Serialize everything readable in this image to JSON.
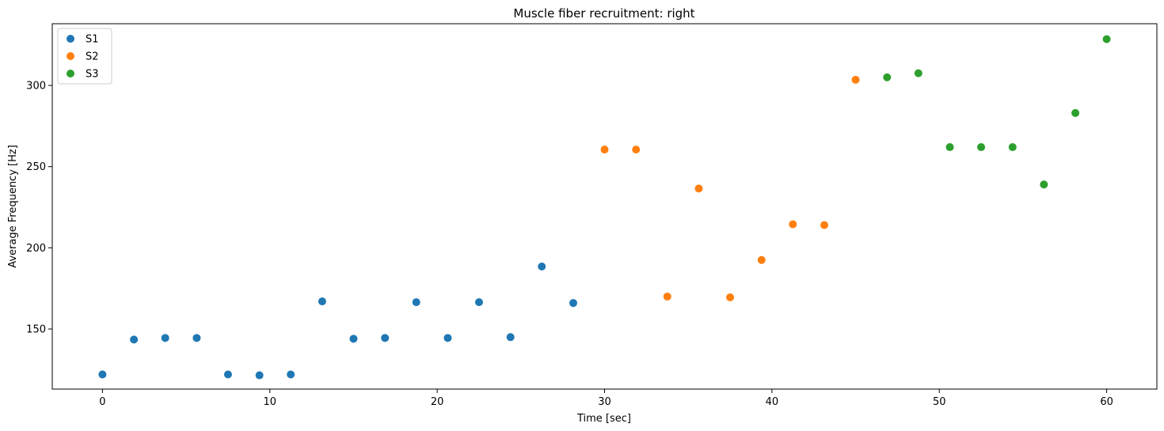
{
  "chart_data": {
    "type": "scatter",
    "title": "Muscle fiber recruitment: right",
    "xlabel": "Time [sec]",
    "ylabel": "Average Frequency [Hz]",
    "xlim": [
      -3,
      63
    ],
    "ylim": [
      113,
      338
    ],
    "xticks": [
      0,
      10,
      20,
      30,
      40,
      50,
      60
    ],
    "yticks": [
      150,
      200,
      250,
      300
    ],
    "grid": false,
    "legend_position": "top-left",
    "series": [
      {
        "name": "S1",
        "color": "#1f77b4",
        "x": [
          0,
          1.88,
          3.75,
          5.63,
          7.5,
          9.38,
          11.25,
          13.13,
          15,
          16.88,
          18.75,
          20.63,
          22.5,
          24.38,
          26.25,
          28.13
        ],
        "y": [
          122,
          143.5,
          144.5,
          144.5,
          122,
          121.5,
          122,
          167,
          144,
          144.5,
          166.5,
          144.5,
          166.5,
          145,
          188.5,
          166
        ]
      },
      {
        "name": "S2",
        "color": "#ff7f0e",
        "x": [
          30,
          31.88,
          33.75,
          35.63,
          37.5,
          39.38,
          41.25,
          43.13,
          45
        ],
        "y": [
          260.5,
          260.5,
          170,
          236.5,
          169.5,
          192.5,
          214.5,
          214,
          303.5
        ]
      },
      {
        "name": "S3",
        "color": "#2ca02c",
        "x": [
          46.88,
          48.75,
          50.63,
          52.5,
          54.38,
          56.25,
          58.13,
          60
        ],
        "y": [
          305,
          307.5,
          262,
          262,
          262,
          239,
          283,
          328.5
        ]
      }
    ]
  }
}
